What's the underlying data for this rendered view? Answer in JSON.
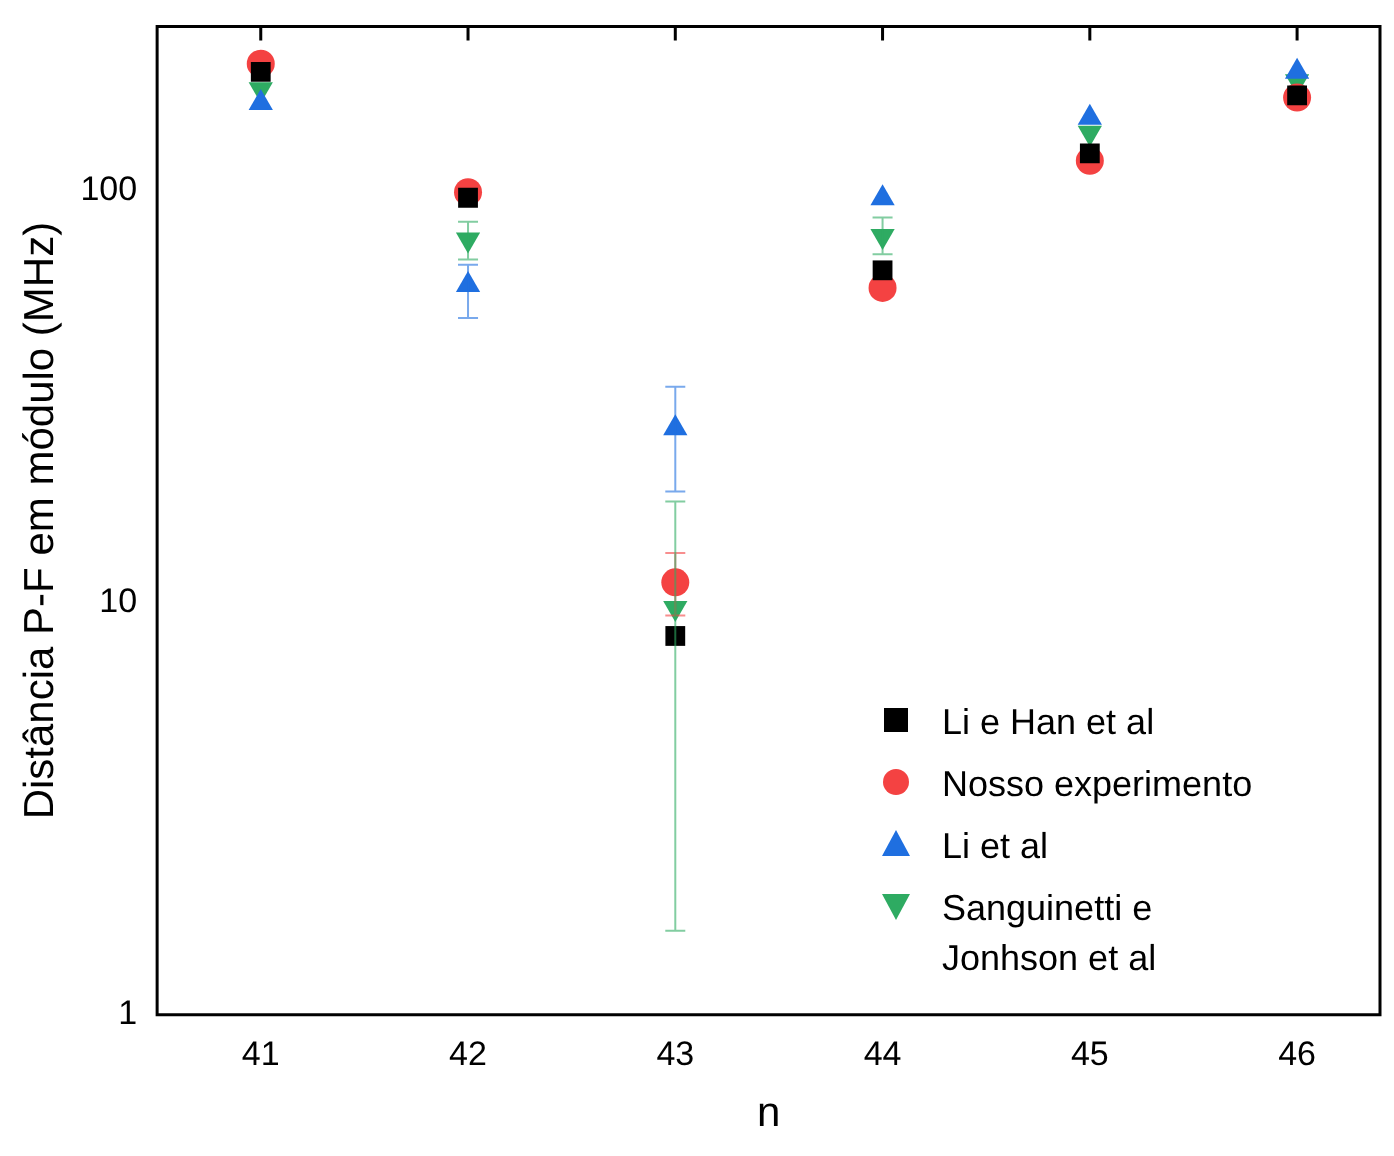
{
  "chart_data": {
    "type": "scatter",
    "xlabel": "n",
    "ylabel": "Distância P-F em módulo (MHz)",
    "x": [
      41,
      42,
      43,
      44,
      45,
      46
    ],
    "xlim": [
      40.5,
      46.4
    ],
    "xticks": [
      41,
      42,
      43,
      44,
      45,
      46
    ],
    "ylim": [
      1,
      250
    ],
    "yticks": [
      1,
      10,
      100
    ],
    "log": "y",
    "grid": false,
    "legend": "bottom right",
    "series": [
      {
        "name": "Li e Han et al",
        "color": "#000000",
        "marker": "square",
        "values": [
          194,
          96,
          8.3,
          64,
          123,
          170
        ]
      },
      {
        "name": "Nosso experimento",
        "color": "#f44242",
        "marker": "circle",
        "values": [
          203,
          99,
          11.2,
          58,
          118,
          168
        ],
        "errors": [
          null,
          null,
          [
            9.3,
            13.2
          ],
          null,
          null,
          null
        ]
      },
      {
        "name": "Li et al",
        "color": "#1f6fe0",
        "marker": "triangle",
        "values": [
          163,
          59,
          26.5,
          95.7,
          150,
          194
        ],
        "errors": [
          null,
          [
            49,
            66
          ],
          [
            18.6,
            33.4
          ],
          null,
          null,
          null
        ]
      },
      {
        "name": "Sanguinetti e Jonhson et al",
        "color": "#2eab62",
        "marker": "triangle-down",
        "values": [
          176,
          76,
          9.7,
          77.5,
          138,
          184
        ],
        "errors": [
          null,
          [
            68,
            84
          ],
          [
            1.6,
            17.6
          ],
          [
            70,
            86
          ],
          null,
          null
        ]
      }
    ]
  }
}
